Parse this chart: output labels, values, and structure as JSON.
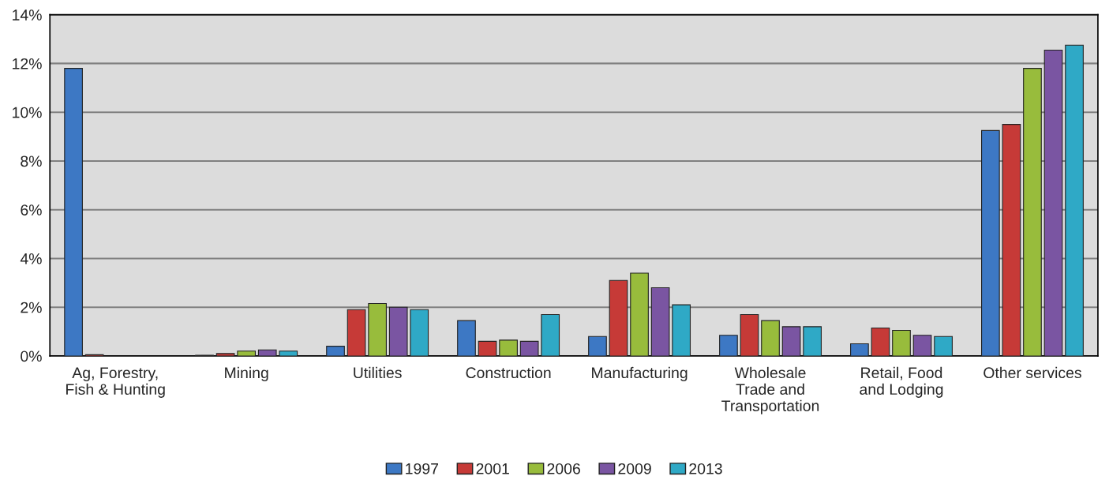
{
  "chart_data": {
    "type": "bar",
    "categories": [
      "Ag, Forestry,\nFish & Hunting",
      "Mining",
      "Utilities",
      "Construction",
      "Manufacturing",
      "Wholesale\nTrade and\nTransportation",
      "Retail, Food\nand Lodging",
      "Other services"
    ],
    "series": [
      {
        "name": "1997",
        "color": "#3d78c4",
        "values": [
          11.8,
          0.03,
          0.4,
          1.45,
          0.8,
          0.85,
          0.5,
          9.25
        ]
      },
      {
        "name": "2001",
        "color": "#c63a37",
        "values": [
          0.05,
          0.1,
          1.9,
          0.6,
          3.1,
          1.7,
          1.15,
          9.5
        ]
      },
      {
        "name": "2006",
        "color": "#98bc3c",
        "values": [
          null,
          0.2,
          2.15,
          0.65,
          3.4,
          1.45,
          1.05,
          11.8
        ]
      },
      {
        "name": "2009",
        "color": "#7a55a2",
        "values": [
          null,
          0.25,
          2.0,
          0.6,
          2.8,
          1.2,
          0.85,
          12.55
        ]
      },
      {
        "name": "2013",
        "color": "#2fa9c6",
        "values": [
          null,
          0.2,
          1.9,
          1.7,
          2.1,
          1.2,
          0.8,
          12.75
        ]
      }
    ],
    "ylim": [
      0,
      14
    ],
    "yticks": [
      {
        "value": 0,
        "label": "0%"
      },
      {
        "value": 2,
        "label": "2%"
      },
      {
        "value": 4,
        "label": "4%"
      },
      {
        "value": 6,
        "label": "6%"
      },
      {
        "value": 8,
        "label": "8%"
      },
      {
        "value": 10,
        "label": "10%"
      },
      {
        "value": 12,
        "label": "12%"
      },
      {
        "value": 14,
        "label": "14%"
      }
    ],
    "grid": "y",
    "legend": "bottom"
  }
}
